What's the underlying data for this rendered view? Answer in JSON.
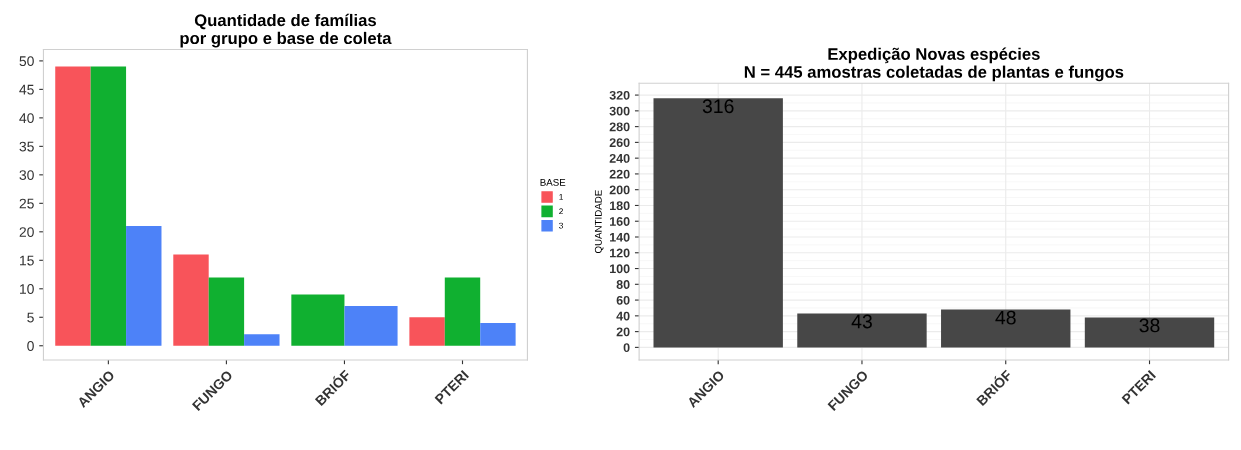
{
  "chart_data": [
    {
      "type": "bar",
      "title": "Quantidade de famílias\npor grupo e base de coleta",
      "categories": [
        "ANGIO",
        "FUNGO",
        "BRIÓF",
        "PTERI"
      ],
      "legend_title": "BASE",
      "legend": "right",
      "series": [
        {
          "name": "1",
          "color": "#f8545a",
          "values": [
            49,
            16,
            null,
            5
          ]
        },
        {
          "name": "2",
          "color": "#10b030",
          "values": [
            49,
            12,
            9,
            12
          ]
        },
        {
          "name": "3",
          "color": "#4d82f8",
          "values": [
            21,
            2,
            7,
            4
          ]
        }
      ],
      "ylim": [
        -2.5,
        52
      ],
      "yticks": [
        0,
        5,
        10,
        15,
        20,
        25,
        30,
        35,
        40,
        45,
        50
      ],
      "grid": false
    },
    {
      "type": "bar",
      "title": "Expedição Novas espécies\nN = 445 amostras coletadas de plantas e fungos",
      "ylabel": "QUANTIDADE",
      "categories": [
        "ANGIO",
        "FUNGO",
        "BRIÓF",
        "PTERI"
      ],
      "series": [
        {
          "color": "#474747",
          "values": [
            316,
            43,
            48,
            38
          ]
        }
      ],
      "data_labels": true,
      "ylim": [
        -16,
        335
      ],
      "yticks": [
        0,
        20,
        40,
        60,
        80,
        100,
        120,
        140,
        160,
        180,
        200,
        220,
        240,
        260,
        280,
        300,
        320
      ],
      "grid": true
    }
  ]
}
